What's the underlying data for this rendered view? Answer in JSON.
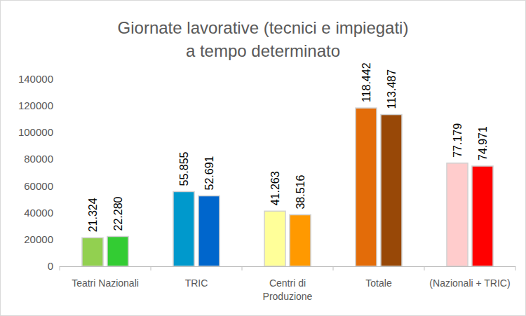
{
  "chart_data": {
    "type": "bar",
    "title": "Giornate lavorative (tecnici e impiegati)\na tempo determinato",
    "categories": [
      "Teatri Nazionali",
      "TRIC",
      "Centri di Produzione",
      "Totale",
      "(Nazionali + TRIC)"
    ],
    "series": [
      {
        "values": [
          21324,
          55855,
          41263,
          118442,
          77179
        ],
        "value_labels": [
          "21.324",
          "55.855",
          "41.263",
          "118.442",
          "77.179"
        ],
        "colors": [
          "#92d050",
          "#0099cc",
          "#ffff99",
          "#e36c09",
          "#ffcccc"
        ]
      },
      {
        "values": [
          22280,
          52691,
          38516,
          113487,
          74971
        ],
        "value_labels": [
          "22.280",
          "52.691",
          "38.516",
          "113.487",
          "74.971"
        ],
        "colors": [
          "#33cc33",
          "#0066cc",
          "#ff9900",
          "#984807",
          "#ff0000"
        ]
      }
    ],
    "ylim": [
      0,
      140000
    ],
    "yticks": [
      0,
      20000,
      40000,
      60000,
      80000,
      100000,
      120000,
      140000
    ],
    "grid": false,
    "data_labels": true
  }
}
